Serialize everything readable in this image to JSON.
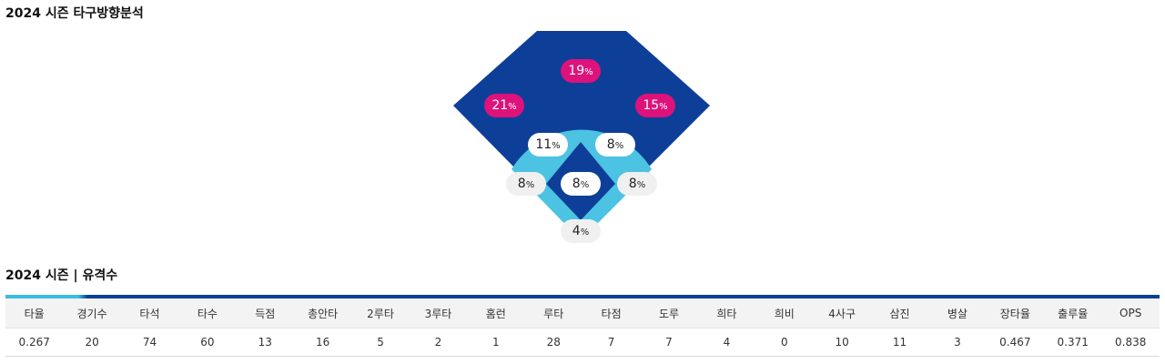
{
  "spray_chart": {
    "title": "2024 시즌 타구방향분석",
    "outfield": {
      "left": "21",
      "center": "19",
      "right": "15"
    },
    "infield": {
      "left": "11",
      "right": "8",
      "third_base": "8",
      "first_base": "8",
      "mound": "8",
      "catcher": "4"
    },
    "unit": "%",
    "colors": {
      "outfield": "#0d3f99",
      "infield": "#4cc3e3",
      "highlight": "#dd127b"
    }
  },
  "stats": {
    "title": "2024 시즌 | 유격수",
    "headers": [
      "타율",
      "경기수",
      "타석",
      "타수",
      "득점",
      "총안타",
      "2루타",
      "3루타",
      "홈런",
      "루타",
      "타점",
      "도루",
      "희타",
      "희비",
      "4사구",
      "삼진",
      "병살",
      "장타율",
      "출루율",
      "OPS"
    ],
    "values": [
      "0.267",
      "20",
      "74",
      "60",
      "13",
      "16",
      "5",
      "2",
      "1",
      "28",
      "7",
      "7",
      "4",
      "0",
      "10",
      "11",
      "3",
      "0.467",
      "0.371",
      "0.838"
    ]
  }
}
